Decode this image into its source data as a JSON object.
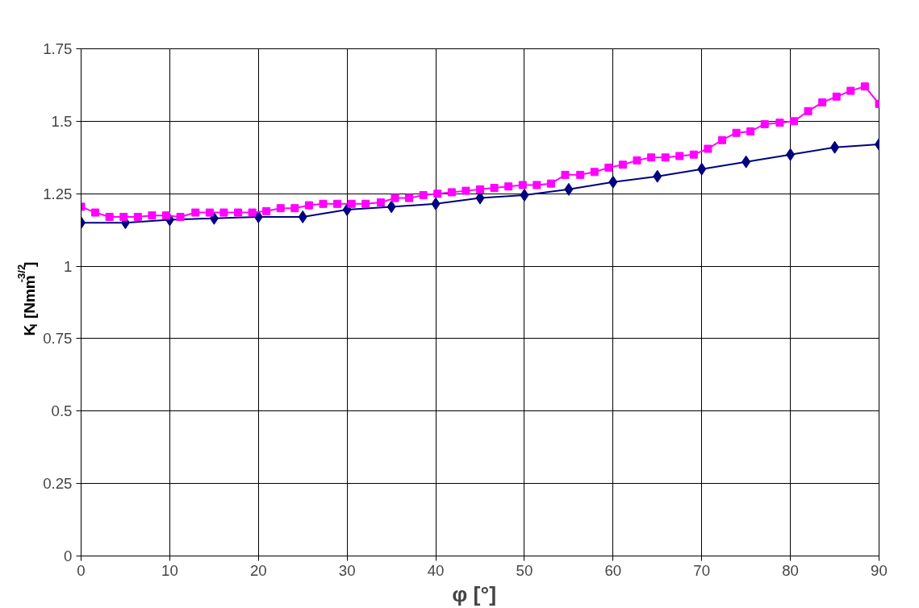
{
  "chart_data": {
    "type": "line",
    "xlabel": "φ   [°]",
    "ylabel": "K$_{I}$ [Nmm$^{-3/2}$]",
    "xlim": [
      0,
      90
    ],
    "xticks": [
      0,
      10,
      20,
      30,
      40,
      50,
      60,
      70,
      80,
      90
    ],
    "ylim": [
      0,
      1.75
    ],
    "yticks": [
      0,
      0.25,
      0.5,
      0.75,
      1,
      1.25,
      1.5,
      1.75
    ],
    "grid": true,
    "line_style": "solid",
    "series": [
      {
        "color": "#000080",
        "marker": "diamond",
        "x": [
          0,
          5,
          10,
          15,
          20,
          25,
          30,
          35,
          40,
          45,
          50,
          55,
          60,
          65,
          70,
          75,
          80,
          85,
          90
        ],
        "values": [
          1.15,
          1.15,
          1.16,
          1.165,
          1.17,
          1.17,
          1.195,
          1.205,
          1.215,
          1.235,
          1.245,
          1.265,
          1.29,
          1.31,
          1.335,
          1.36,
          1.385,
          1.41,
          1.42
        ]
      },
      {
        "color": "#ff00ff",
        "marker": "square",
        "x": [
          0,
          1.6,
          3.2,
          4.8,
          6.4,
          8.0,
          9.6,
          11.2,
          12.9,
          14.5,
          16.1,
          17.7,
          19.3,
          20.9,
          22.5,
          24.1,
          25.7,
          27.3,
          28.9,
          30.5,
          32.1,
          33.8,
          35.4,
          37.0,
          38.6,
          40.2,
          41.8,
          43.4,
          45.0,
          46.6,
          48.2,
          49.8,
          51.4,
          53.0,
          54.6,
          56.3,
          57.9,
          59.5,
          61.1,
          62.7,
          64.3,
          65.9,
          67.5,
          69.1,
          70.7,
          72.3,
          73.9,
          75.5,
          77.1,
          78.8,
          80.4,
          82.0,
          83.6,
          85.2,
          86.8,
          88.4,
          90.0
        ],
        "values": [
          1.205,
          1.185,
          1.17,
          1.17,
          1.17,
          1.175,
          1.175,
          1.17,
          1.185,
          1.185,
          1.185,
          1.185,
          1.185,
          1.19,
          1.2,
          1.2,
          1.21,
          1.215,
          1.215,
          1.215,
          1.215,
          1.22,
          1.235,
          1.235,
          1.245,
          1.25,
          1.255,
          1.26,
          1.265,
          1.27,
          1.275,
          1.28,
          1.28,
          1.285,
          1.315,
          1.315,
          1.325,
          1.34,
          1.35,
          1.365,
          1.375,
          1.375,
          1.38,
          1.385,
          1.405,
          1.435,
          1.46,
          1.465,
          1.49,
          1.495,
          1.5,
          1.535,
          1.565,
          1.585,
          1.605,
          1.62,
          1.56
        ]
      }
    ]
  }
}
